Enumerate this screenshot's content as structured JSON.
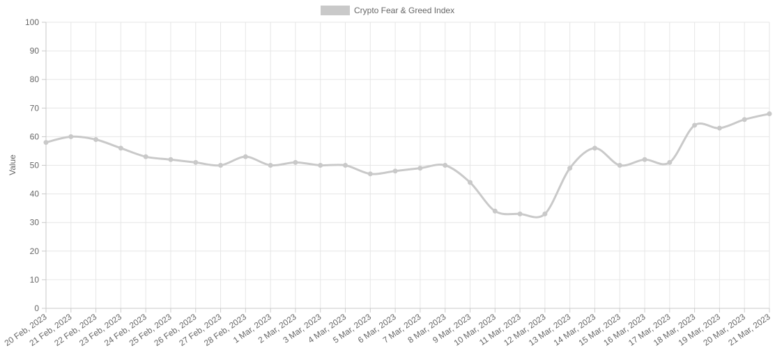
{
  "chart_data": {
    "type": "line",
    "title": "",
    "xlabel": "",
    "ylabel": "Value",
    "ylim": [
      0,
      100
    ],
    "y_ticks": [
      0,
      10,
      20,
      30,
      40,
      50,
      60,
      70,
      80,
      90,
      100
    ],
    "grid": true,
    "legend_position": "top",
    "categories": [
      "20 Feb, 2023",
      "21 Feb, 2023",
      "22 Feb, 2023",
      "23 Feb, 2023",
      "24 Feb, 2023",
      "25 Feb, 2023",
      "26 Feb, 2023",
      "27 Feb, 2023",
      "28 Feb, 2023",
      "1 Mar, 2023",
      "2 Mar, 2023",
      "3 Mar, 2023",
      "4 Mar, 2023",
      "5 Mar, 2023",
      "6 Mar, 2023",
      "7 Mar, 2023",
      "8 Mar, 2023",
      "9 Mar, 2023",
      "10 Mar, 2023",
      "11 Mar, 2023",
      "12 Mar, 2023",
      "13 Mar, 2023",
      "14 Mar, 2023",
      "15 Mar, 2023",
      "16 Mar, 2023",
      "17 Mar, 2023",
      "18 Mar, 2023",
      "19 Mar, 2023",
      "20 Mar, 2023",
      "21 Mar, 2023"
    ],
    "series": [
      {
        "name": "Crypto Fear & Greed Index",
        "color": "#c9c9c9",
        "values": [
          58,
          60,
          59,
          56,
          53,
          52,
          51,
          50,
          53,
          50,
          51,
          50,
          50,
          47,
          48,
          49,
          50,
          44,
          34,
          33,
          33,
          49,
          56,
          50,
          52,
          51,
          64,
          63,
          66,
          68
        ]
      }
    ]
  }
}
